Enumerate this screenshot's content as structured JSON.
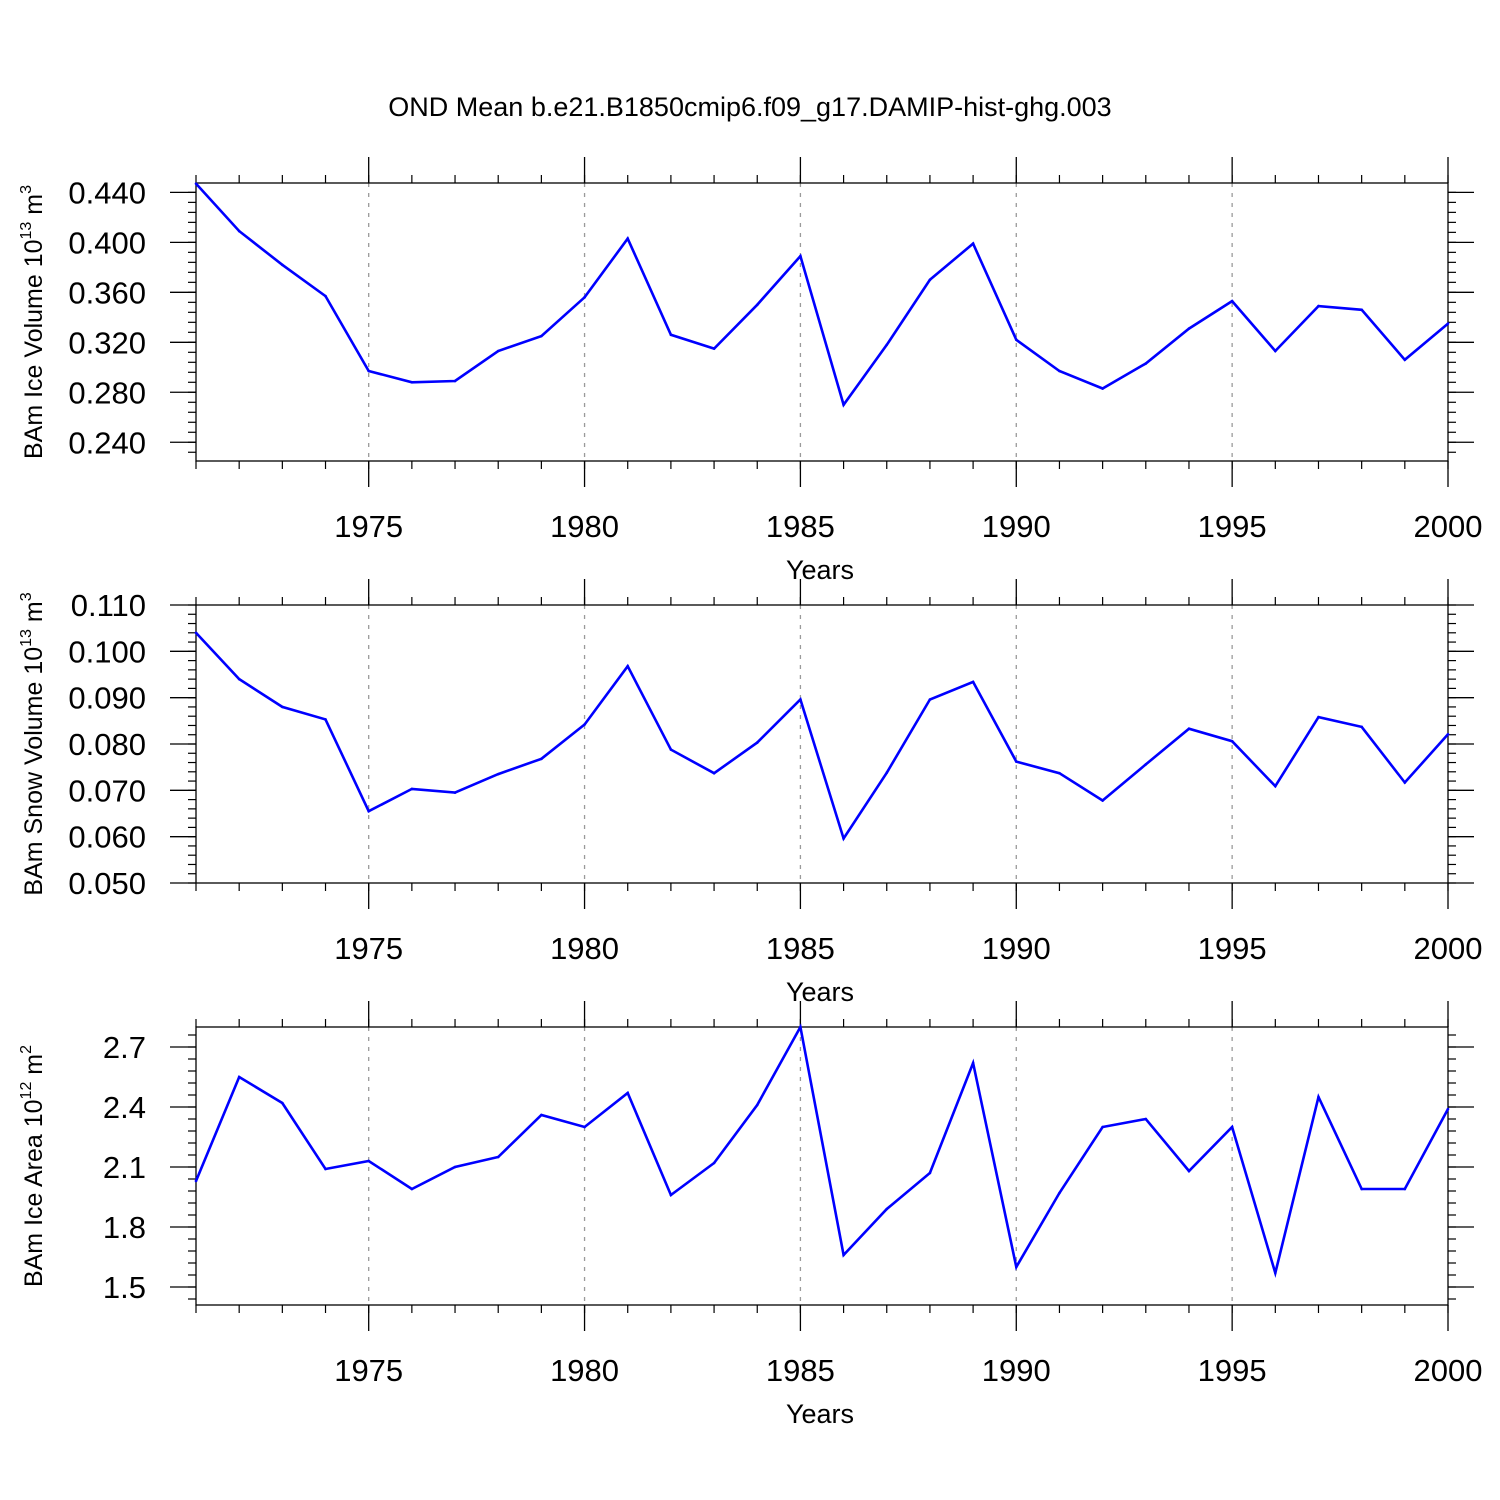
{
  "figure": {
    "title": "OND Mean b.e21.B1850cmip6.f09_g17.DAMIP-hist-ghg.003"
  },
  "colors": {
    "series": "#0000ff",
    "axis": "#000000",
    "grid": "#9a9a9a"
  },
  "chart_data": [
    {
      "type": "line",
      "ylabel": "BAm Ice Volume 10",
      "ylabel_sup": "13",
      "ylabel_unit": "m",
      "ylabel_unit_sup": "3",
      "xlabel": "Years",
      "xlim": [
        1971,
        2000
      ],
      "ylim": [
        0.225,
        0.4475
      ],
      "yticks": [
        0.24,
        0.28,
        0.32,
        0.36,
        0.4,
        0.44
      ],
      "ytick_labels": [
        "0.240",
        "0.280",
        "0.320",
        "0.360",
        "0.400",
        "0.440"
      ],
      "xticks": [
        1975,
        1980,
        1985,
        1990,
        1995,
        2000
      ],
      "xtick_labels": [
        "1975",
        "1980",
        "1985",
        "1990",
        "1995",
        "2000"
      ],
      "grid": "vertical dashed at major x ticks",
      "x": [
        1971,
        1972,
        1973,
        1974,
        1975,
        1976,
        1977,
        1978,
        1979,
        1980,
        1981,
        1982,
        1983,
        1984,
        1985,
        1986,
        1987,
        1988,
        1989,
        1990,
        1991,
        1992,
        1993,
        1994,
        1995,
        1996,
        1997,
        1998,
        1999,
        2000
      ],
      "values": [
        0.447,
        0.409,
        0.382,
        0.357,
        0.297,
        0.288,
        0.289,
        0.313,
        0.325,
        0.356,
        0.403,
        0.326,
        0.315,
        0.35,
        0.389,
        0.27,
        0.318,
        0.37,
        0.399,
        0.322,
        0.297,
        0.283,
        0.303,
        0.331,
        0.353,
        0.313,
        0.349,
        0.346,
        0.306,
        0.335
      ]
    },
    {
      "type": "line",
      "ylabel": "BAm Snow Volume 10",
      "ylabel_sup": "13",
      "ylabel_unit": "m",
      "ylabel_unit_sup": "3",
      "xlabel": "Years",
      "xlim": [
        1971,
        2000
      ],
      "ylim": [
        0.05,
        0.11
      ],
      "yticks": [
        0.05,
        0.06,
        0.07,
        0.08,
        0.09,
        0.1,
        0.11
      ],
      "ytick_labels": [
        "0.050",
        "0.060",
        "0.070",
        "0.080",
        "0.090",
        "0.100",
        "0.110"
      ],
      "xticks": [
        1975,
        1980,
        1985,
        1990,
        1995,
        2000
      ],
      "xtick_labels": [
        "1975",
        "1980",
        "1985",
        "1990",
        "1995",
        "2000"
      ],
      "grid": "vertical dashed at major x ticks",
      "x": [
        1971,
        1972,
        1973,
        1974,
        1975,
        1976,
        1977,
        1978,
        1979,
        1980,
        1981,
        1982,
        1983,
        1984,
        1985,
        1986,
        1987,
        1988,
        1989,
        1990,
        1991,
        1992,
        1993,
        1994,
        1995,
        1996,
        1997,
        1998,
        1999,
        2000
      ],
      "values": [
        0.104,
        0.094,
        0.088,
        0.0853,
        0.0655,
        0.0703,
        0.0695,
        0.0735,
        0.0768,
        0.0842,
        0.0968,
        0.0788,
        0.0737,
        0.0803,
        0.0896,
        0.0596,
        0.0738,
        0.0896,
        0.0934,
        0.0762,
        0.0737,
        0.0678,
        0.0756,
        0.0833,
        0.0806,
        0.0709,
        0.0858,
        0.0837,
        0.0717,
        0.0821
      ]
    },
    {
      "type": "line",
      "ylabel": "BAm Ice Area 10",
      "ylabel_sup": "12",
      "ylabel_unit": "m",
      "ylabel_unit_sup": "2",
      "xlabel": "Years",
      "xlim": [
        1971,
        2000
      ],
      "ylim": [
        1.41,
        2.8
      ],
      "yticks": [
        1.5,
        1.8,
        2.1,
        2.4,
        2.7
      ],
      "ytick_labels": [
        "1.5",
        "1.8",
        "2.1",
        "2.4",
        "2.7"
      ],
      "xticks": [
        1975,
        1980,
        1985,
        1990,
        1995,
        2000
      ],
      "xtick_labels": [
        "1975",
        "1980",
        "1985",
        "1990",
        "1995",
        "2000"
      ],
      "grid": "vertical dashed at major x ticks",
      "x": [
        1971,
        1972,
        1973,
        1974,
        1975,
        1976,
        1977,
        1978,
        1979,
        1980,
        1981,
        1982,
        1983,
        1984,
        1985,
        1986,
        1987,
        1988,
        1989,
        1990,
        1991,
        1992,
        1993,
        1994,
        1995,
        1996,
        1997,
        1998,
        1999,
        2000
      ],
      "values": [
        2.03,
        2.55,
        2.42,
        2.09,
        2.13,
        1.99,
        2.1,
        2.15,
        2.36,
        2.3,
        2.47,
        1.96,
        2.12,
        2.41,
        2.8,
        1.66,
        1.89,
        2.07,
        2.62,
        1.6,
        1.97,
        2.3,
        2.34,
        2.08,
        2.3,
        1.57,
        2.45,
        1.99,
        1.99,
        2.39
      ]
    }
  ]
}
